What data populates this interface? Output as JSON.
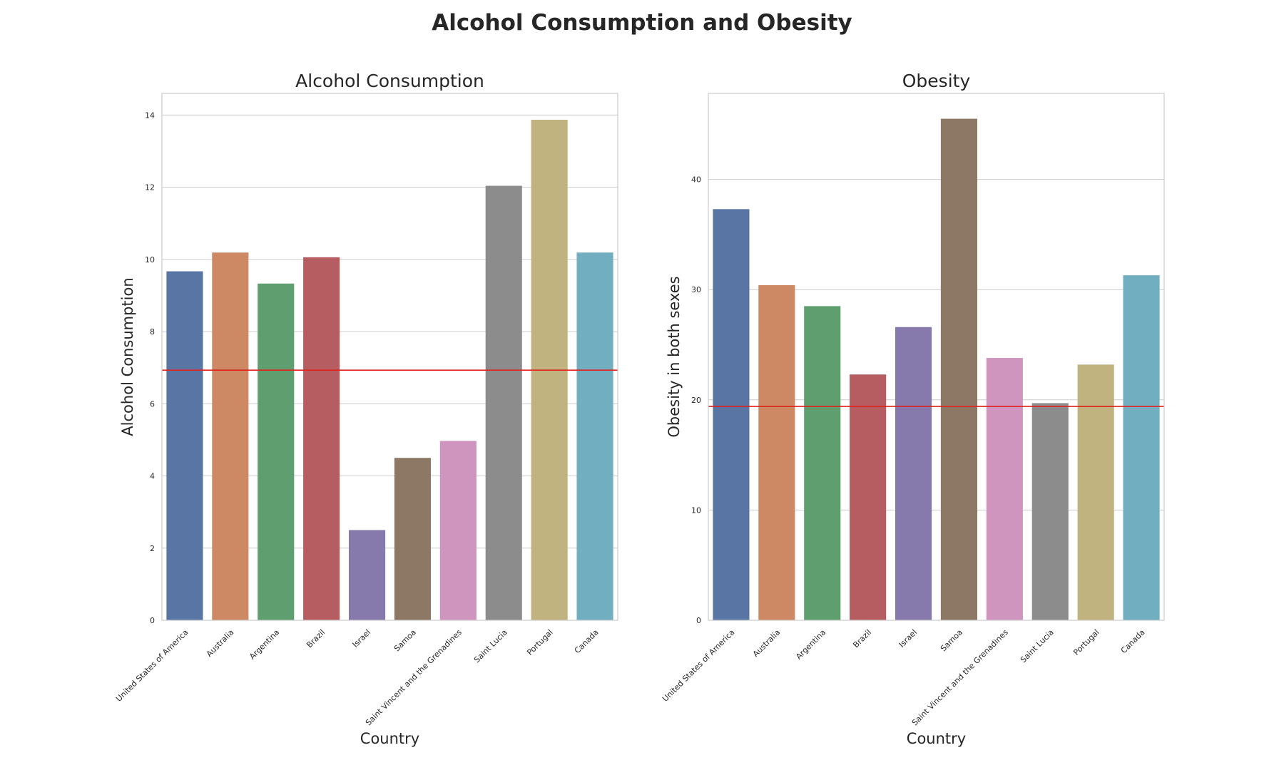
{
  "figure": {
    "suptitle": "Alcohol Consumption and Obesity"
  },
  "colors": {
    "palette": [
      "#5875a4",
      "#cc8963",
      "#5f9e6e",
      "#b55d60",
      "#857aab",
      "#8d7866",
      "#d095bf",
      "#8c8c8c",
      "#c1b37f",
      "#71aec0"
    ],
    "reference_line": "#e0231c",
    "grid": "#cccccc",
    "spine": "#cccccc"
  },
  "chart_data": [
    {
      "type": "bar",
      "title": "Alcohol Consumption",
      "xlabel": "Country",
      "ylabel": "Alcohol Consumption",
      "categories": [
        "United States of America",
        "Australia",
        "Argentina",
        "Brazil",
        "Israel",
        "Samoa",
        "Saint Vincent and the Grenadines",
        "Saint Lucia",
        "Portugal",
        "Canada"
      ],
      "values": [
        9.67,
        10.19,
        9.33,
        10.06,
        2.5,
        4.5,
        4.97,
        12.04,
        13.87,
        10.19
      ],
      "reference_line": 6.93,
      "ylim": [
        0,
        14.6
      ],
      "yticks": [
        0,
        2,
        4,
        6,
        8,
        10,
        12,
        14
      ],
      "grid": "y"
    },
    {
      "type": "bar",
      "title": "Obesity",
      "xlabel": "Country",
      "ylabel": "Obesity in both sexes",
      "categories": [
        "United States of America",
        "Australia",
        "Argentina",
        "Brazil",
        "Israel",
        "Samoa",
        "Saint Vincent and the Grenadines",
        "Saint Lucia",
        "Portugal",
        "Canada"
      ],
      "values": [
        37.3,
        30.4,
        28.5,
        22.3,
        26.6,
        45.5,
        23.8,
        19.7,
        23.2,
        31.3
      ],
      "reference_line": 19.4,
      "ylim": [
        0,
        47.8
      ],
      "yticks": [
        0,
        10,
        20,
        30,
        40
      ],
      "grid": "y"
    }
  ]
}
